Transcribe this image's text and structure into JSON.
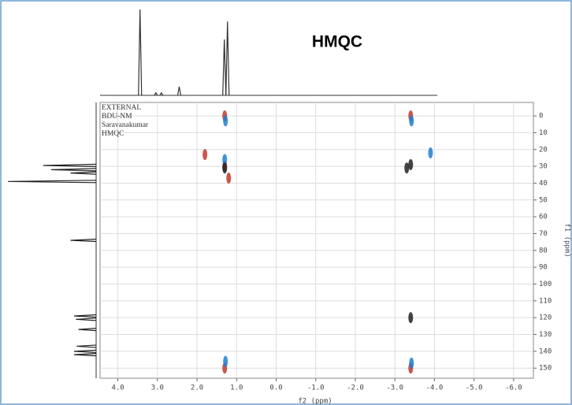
{
  "chart_data": {
    "type": "scatter",
    "title": "HMQC",
    "annotations": [
      "EXTERNAL",
      "BDU-NM",
      "Saravanakumar",
      "HMQC"
    ],
    "x_label": "f2 (ppm)",
    "y_label": "f1 (ppm)",
    "xlim": [
      4.45,
      -6.5
    ],
    "ylim": [
      -8,
      156
    ],
    "xticks": [
      {
        "value": 4,
        "label": "4.0"
      },
      {
        "value": 3,
        "label": "3.0"
      },
      {
        "value": 2,
        "label": "2.0"
      },
      {
        "value": 1,
        "label": "1.0"
      },
      {
        "value": 0,
        "label": "0.0"
      },
      {
        "value": -1,
        "label": "-1.0"
      },
      {
        "value": -2,
        "label": "-2.0"
      },
      {
        "value": -3,
        "label": "-3.0"
      },
      {
        "value": -4,
        "label": "-4.0"
      },
      {
        "value": -5,
        "label": "-5.0"
      },
      {
        "value": -6,
        "label": "-6.0"
      }
    ],
    "yticks": [
      0,
      10,
      20,
      30,
      40,
      50,
      60,
      70,
      80,
      90,
      100,
      110,
      120,
      130,
      140,
      150
    ],
    "grid": true,
    "series": [
      {
        "color": "#c0392b",
        "x": [
          1.3,
          1.3,
          1.3,
          1.8,
          -3.4,
          -3.4,
          1.2
        ],
        "values": [
          0,
          150,
          30,
          23,
          0,
          150,
          37
        ]
      },
      {
        "color": "#1f7fd0",
        "x": [
          1.28,
          1.28,
          1.3,
          -3.42,
          -3.42,
          -3.9
        ],
        "values": [
          3,
          146,
          26,
          3,
          147,
          22
        ]
      },
      {
        "color": "#222222",
        "x": [
          1.3,
          -3.3,
          -3.4,
          -3.4
        ],
        "values": [
          31,
          31,
          120,
          29
        ]
      }
    ],
    "f2_projection": {
      "color": "#333333",
      "x": [
        3.44,
        3.04,
        2.9,
        2.45,
        1.31,
        1.23
      ],
      "values": [
        100,
        3,
        3,
        10,
        65,
        86
      ]
    },
    "f1_projection": {
      "color": "#222222",
      "y": [
        29.5,
        32,
        34,
        39,
        74,
        119,
        121,
        127,
        137,
        140,
        142
      ],
      "values": [
        60,
        51,
        29,
        100,
        29,
        25,
        23,
        20,
        22,
        25,
        25
      ]
    }
  }
}
